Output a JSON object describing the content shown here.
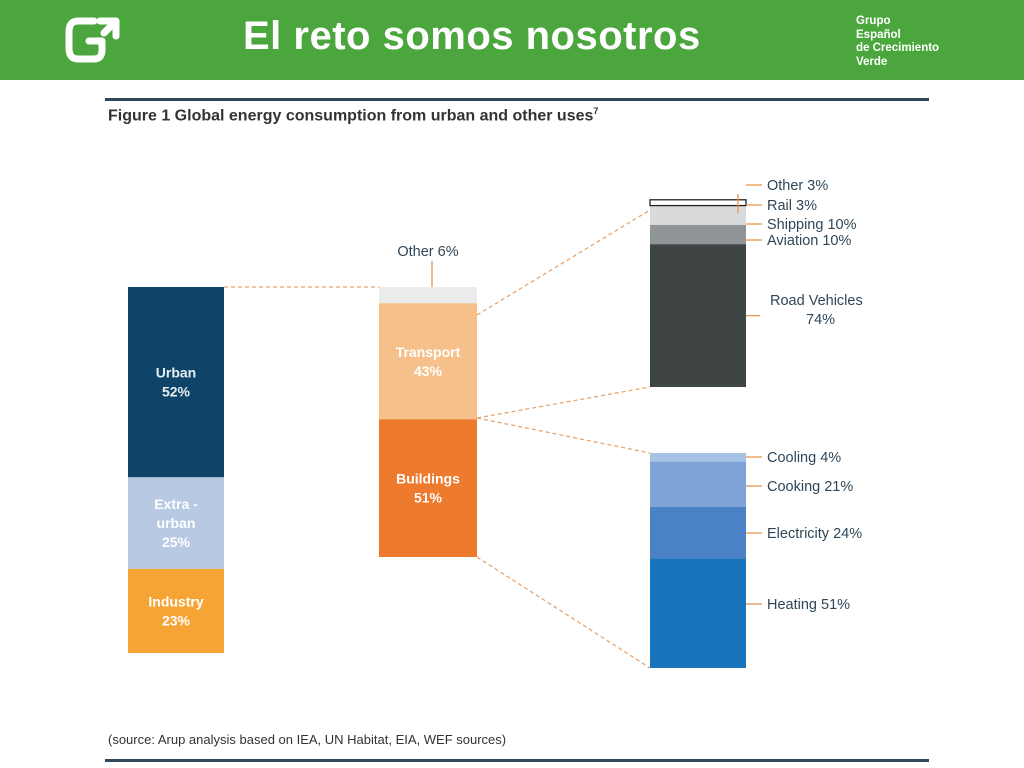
{
  "header": {
    "title": "El reto somos nosotros",
    "brand_lines": [
      "Grupo",
      "Español",
      "de Crecimiento",
      "Verde"
    ],
    "background": "#4ba63d",
    "logo_icon": "g-arrow-logo"
  },
  "figure": {
    "title": "Figure 1  Global energy consumption from urban and other uses",
    "footnote": "7",
    "source": "(source: Arup analysis based on IEA, UN Habitat, EIA, WEF sources)"
  },
  "chart_data": [
    {
      "type": "bar",
      "stacked": true,
      "name": "global",
      "segments": [
        {
          "label": [
            "Urban",
            "52%"
          ],
          "value": 52,
          "color": "#0e4468"
        },
        {
          "label": [
            "Extra -",
            "urban",
            "25%"
          ],
          "value": 25,
          "color": "#b7c9e3"
        },
        {
          "label": [
            "Industry",
            "23%"
          ],
          "value": 23,
          "color": "#f5a535"
        }
      ]
    },
    {
      "type": "bar",
      "stacked": true,
      "name": "urban",
      "segments": [
        {
          "label": [
            "Other 6%"
          ],
          "value": 6,
          "color": "#ececec"
        },
        {
          "label": [
            "Transport",
            "43%"
          ],
          "value": 43,
          "color": "#f5c08a"
        },
        {
          "label": [
            "Buildings",
            "51%"
          ],
          "value": 51,
          "color": "#ee7a2d"
        }
      ]
    },
    {
      "type": "bar",
      "stacked": true,
      "name": "transport",
      "segments": [
        {
          "label": [
            "Other 3%"
          ],
          "value": 3,
          "color": "#ffffff"
        },
        {
          "label": [
            "Rail 3%"
          ],
          "value": 3,
          "color": "#ffffff"
        },
        {
          "label": [
            "Shipping 10%"
          ],
          "value": 10,
          "color": "#d9dadb"
        },
        {
          "label": [
            "Aviation 10%"
          ],
          "value": 10,
          "color": "#8f9496"
        },
        {
          "label": [
            "Road Vehicles",
            "74%"
          ],
          "value": 74,
          "color": "#3f4445"
        }
      ]
    },
    {
      "type": "bar",
      "stacked": true,
      "name": "buildings",
      "segments": [
        {
          "label": [
            "Cooling 4%"
          ],
          "value": 4,
          "color": "#a8c2e6"
        },
        {
          "label": [
            "Cooking 21%"
          ],
          "value": 21,
          "color": "#7ea3d7"
        },
        {
          "label": [
            "Electricity 24%"
          ],
          "value": 24,
          "color": "#4a82c5"
        },
        {
          "label": [
            "Heating 51%"
          ],
          "value": 51,
          "color": "#1a74bb"
        }
      ]
    }
  ],
  "colors": {
    "connector": "#e8a56e",
    "callout": "#e8954a",
    "label_text": "#2f4757",
    "rule": "#2f4757"
  }
}
